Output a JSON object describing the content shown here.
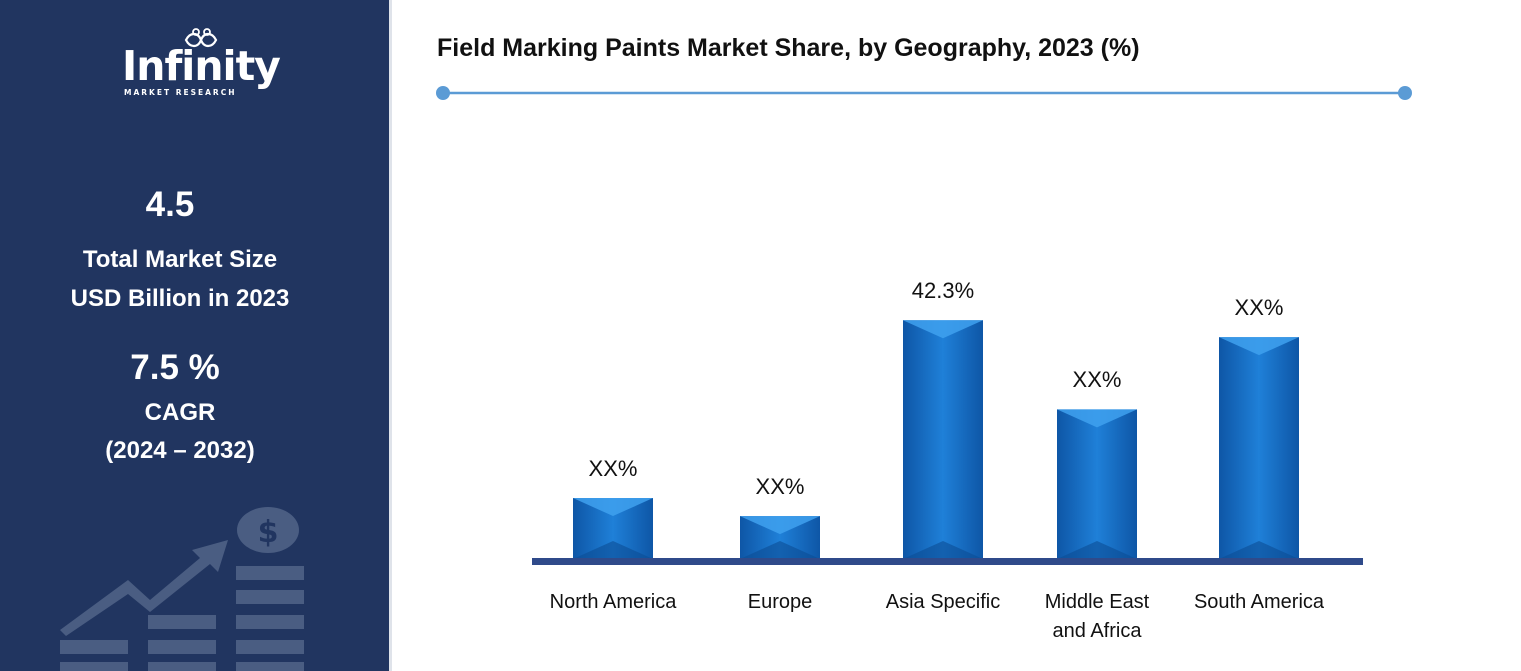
{
  "brand": {
    "name": "Infinity",
    "tagline": "MARKET RESEARCH"
  },
  "stats": {
    "market_size_value": "4.5",
    "market_size_label_1": "Total Market Size",
    "market_size_label_2": "USD Billion in 2023",
    "cagr_value": "7.5 %",
    "cagr_label": "CAGR",
    "cagr_period": "(2024 – 2032)"
  },
  "icons": {
    "growth_graphic": "dollar-growth-chart-icon",
    "logo_mark": "infinity-figures-icon"
  },
  "colors": {
    "sidebar": "#213560",
    "bar": "#1a73c9",
    "bar_highlight": "#3fa1ee",
    "axis": "#2f4a8a",
    "rule": "#5b9bd5"
  },
  "chart_data": {
    "type": "bar",
    "title": "Field Marking Paints Market Share, by Geography, 2023 (%)",
    "categories": [
      "North America",
      "Europe",
      "Asia Specific",
      "Middle East and Africa",
      "South America"
    ],
    "category_label_lines": [
      [
        "North America"
      ],
      [
        "Europe"
      ],
      [
        "Asia Specific"
      ],
      [
        "Middle East",
        "and Africa"
      ],
      [
        "South America"
      ]
    ],
    "values": [
      10.8,
      7.6,
      42.3,
      26.5,
      39.3
    ],
    "data_labels": [
      "XX%",
      "XX%",
      "42.3%",
      "XX%",
      "XX%"
    ],
    "ylim": [
      0,
      45
    ],
    "grid": false,
    "legend": "none"
  }
}
